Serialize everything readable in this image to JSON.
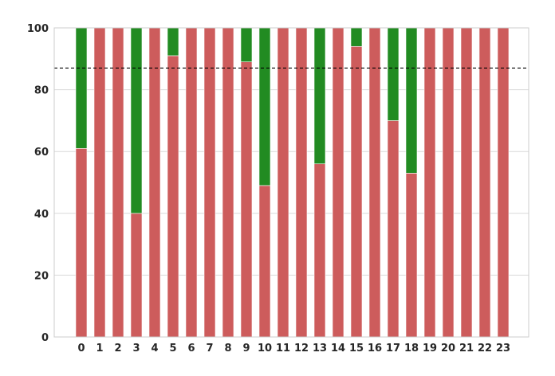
{
  "chart_data": {
    "type": "bar",
    "stacked": true,
    "categories": [
      "0",
      "1",
      "2",
      "3",
      "4",
      "5",
      "6",
      "7",
      "8",
      "9",
      "10",
      "11",
      "12",
      "13",
      "14",
      "15",
      "16",
      "17",
      "18",
      "19",
      "20",
      "21",
      "22",
      "23"
    ],
    "series": [
      {
        "color": "#cd5c5c",
        "values": [
          61,
          100,
          100,
          40,
          100,
          91,
          100,
          100,
          100,
          89,
          49,
          100,
          100,
          56,
          100,
          94,
          100,
          70,
          53,
          100,
          100,
          100,
          100,
          100
        ]
      },
      {
        "color": "#228b22",
        "values": [
          39,
          0,
          0,
          60,
          0,
          9,
          0,
          0,
          0,
          11,
          51,
          0,
          0,
          44,
          0,
          6,
          0,
          30,
          47,
          0,
          0,
          0,
          0,
          0
        ]
      }
    ],
    "ylim": [
      0,
      100
    ],
    "yticks": [
      0,
      20,
      40,
      60,
      80,
      100
    ],
    "reference_line": {
      "y": 87,
      "style": "dashed",
      "color": "#000000"
    },
    "grid": "horizontal",
    "title": "",
    "xlabel": "",
    "ylabel": ""
  }
}
